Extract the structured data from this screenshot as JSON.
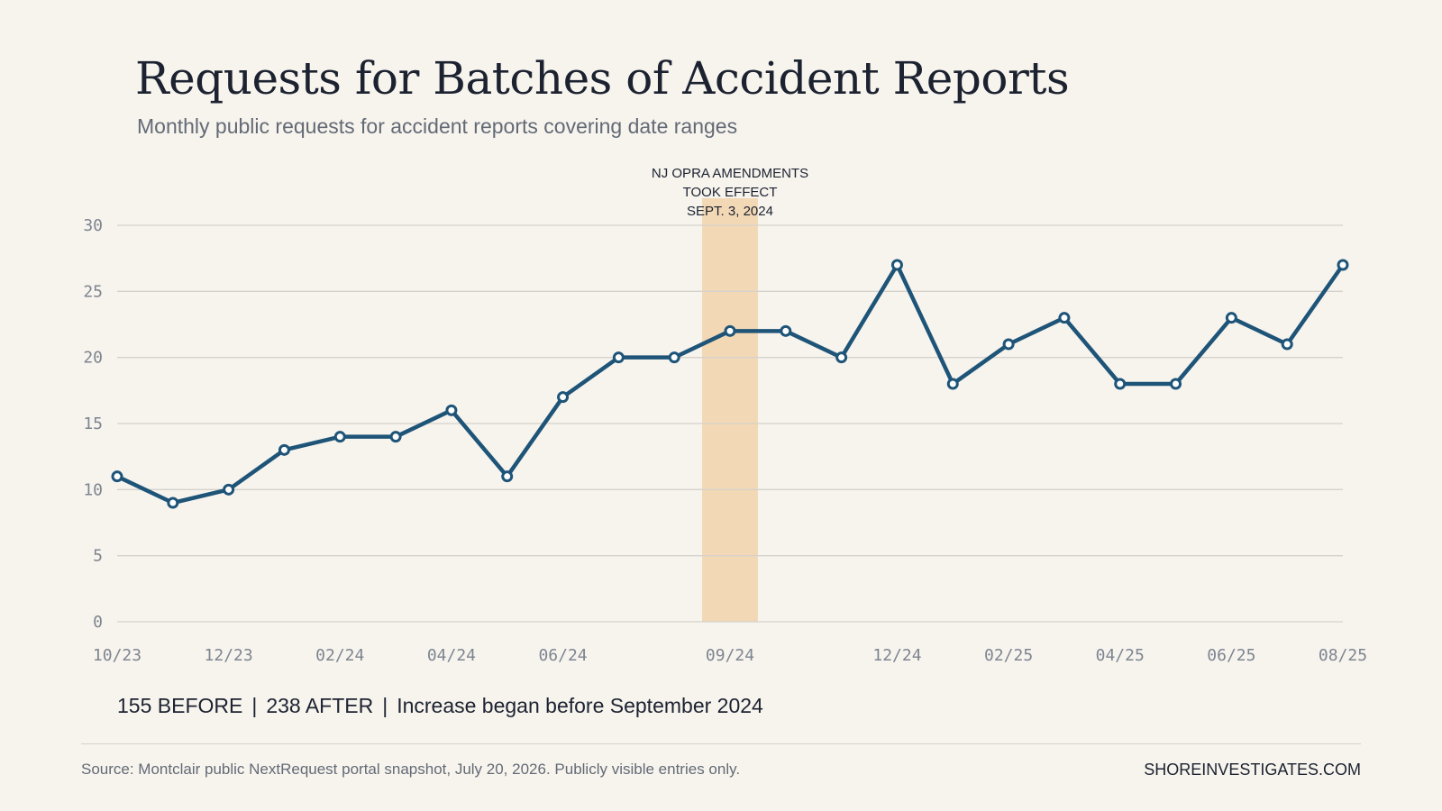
{
  "header": {
    "title": "Requests for Batches of Accident Reports",
    "subtitle": "Monthly public requests for accident reports covering date ranges"
  },
  "stats": {
    "before": "155 BEFORE",
    "after": "238 AFTER",
    "note": "Increase began before September 2024",
    "separator": "|"
  },
  "footer": {
    "source": "Source: Montclair public NextRequest portal snapshot, July 20, 2026. Publicly visible entries only.",
    "brand": "SHOREINVESTIGATES.COM"
  },
  "colors": {
    "line": "#1e5478",
    "highlight": "#f2d8b5",
    "grid": "#d5d2cc",
    "background": "#f7f4ee"
  },
  "chart_data": {
    "type": "line",
    "title": "Requests for Batches of Accident Reports",
    "subtitle": "Monthly public requests for accident reports covering date ranges",
    "xlabel": "",
    "ylabel": "",
    "ylim": [
      0,
      30
    ],
    "yticks": [
      0,
      5,
      10,
      15,
      20,
      25,
      30
    ],
    "grid": true,
    "x": [
      "10/23",
      "11/23",
      "12/23",
      "01/24",
      "02/24",
      "03/24",
      "04/24",
      "05/24",
      "06/24",
      "07/24",
      "08/24",
      "09/24",
      "10/24",
      "11/24",
      "12/24",
      "01/25",
      "02/25",
      "03/25",
      "04/25",
      "05/25",
      "06/25",
      "07/25",
      "08/25"
    ],
    "xtick_labels": [
      "10/23",
      "12/23",
      "02/24",
      "04/24",
      "06/24",
      "09/24",
      "12/24",
      "02/25",
      "04/25",
      "06/25",
      "08/25"
    ],
    "series": [
      {
        "values": [
          11,
          9,
          10,
          13,
          14,
          14,
          16,
          11,
          17,
          20,
          20,
          22,
          22,
          20,
          27,
          18,
          21,
          23,
          18,
          18,
          23,
          21,
          27
        ]
      }
    ],
    "annotations": [
      {
        "type": "highlight-band",
        "x": "09/24",
        "lines": [
          "NJ OPRA AMENDMENTS",
          "TOOK EFFECT",
          "SEPT. 3, 2024"
        ]
      }
    ]
  }
}
